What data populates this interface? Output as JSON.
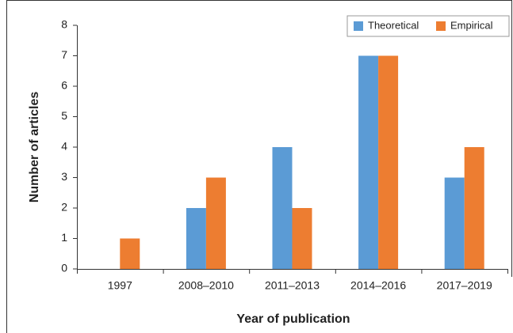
{
  "chart_data": {
    "type": "bar",
    "categories": [
      "1997",
      "2008–2010",
      "2011–2013",
      "2014–2016",
      "2017–2019"
    ],
    "series": [
      {
        "name": "Theoretical",
        "color": "#5b9bd5",
        "values": [
          0,
          2,
          4,
          7,
          3
        ]
      },
      {
        "name": "Empirical",
        "color": "#ed7d31",
        "values": [
          1,
          3,
          2,
          7,
          4
        ]
      }
    ],
    "xlabel": "Year of publication",
    "ylabel": "Number of articles",
    "ylim": [
      0,
      8
    ],
    "yticks": [
      0,
      1,
      2,
      3,
      4,
      5,
      6,
      7,
      8
    ],
    "legend": "upper right"
  }
}
